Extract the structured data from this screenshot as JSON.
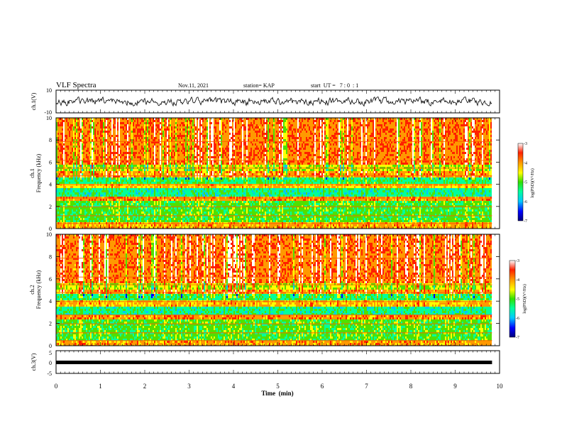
{
  "header": {
    "title": "VLF Spectra",
    "date": "Nov.11, 2021",
    "station": "station= KAP",
    "start_ut": "start  UT =   7 : 0  : 1"
  },
  "chart_data": [
    {
      "type": "line",
      "panel": "ch1-waveform",
      "ylabel": "ch.1(V)",
      "xlim": [
        0,
        10
      ],
      "ylim": [
        -10,
        10
      ],
      "yticks": [
        "10",
        "-10"
      ],
      "data_extent_min": [
        0,
        9.83
      ],
      "approx_range": [
        -4,
        4
      ]
    },
    {
      "type": "heatmap",
      "panel": "ch1-spectrogram",
      "ylabel": "ch.1\nFrequency  (kHz)",
      "xlim": [
        0,
        10
      ],
      "ylim": [
        0,
        10
      ],
      "yticks": [
        "0",
        "2",
        "4",
        "6",
        "8",
        "10"
      ],
      "colorbar": {
        "label": "log(PSD)(V²/Hz)",
        "range": [
          -7,
          -3
        ],
        "ticks": [
          "-3",
          "-4",
          "-5",
          "-6",
          "-7"
        ]
      }
    },
    {
      "type": "heatmap",
      "panel": "ch2-spectrogram",
      "ylabel": "ch.2\nFrequency  (kHz)",
      "xlim": [
        0,
        10
      ],
      "ylim": [
        0,
        10
      ],
      "yticks": [
        "0",
        "2",
        "4",
        "6",
        "8",
        "10"
      ],
      "colorbar": {
        "label": "log(PSD)(V²/Hz)",
        "range": [
          -7,
          -3
        ],
        "ticks": [
          "-3",
          "-4",
          "-5",
          "-6",
          "-7"
        ]
      }
    },
    {
      "type": "line",
      "panel": "ch3-waveform",
      "ylabel": "ch.3(V)",
      "xlim": [
        0,
        10
      ],
      "ylim": [
        -5,
        5
      ],
      "yticks": [
        "5",
        "0",
        "-5"
      ],
      "approx_level": -1
    }
  ],
  "xaxis": {
    "label": "Time  (min)",
    "ticks": [
      "0",
      "1",
      "2",
      "3",
      "4",
      "5",
      "6",
      "7",
      "8",
      "9",
      "10"
    ]
  },
  "colors": {
    "spectrum_scale": [
      "#00007a",
      "#0000ff",
      "#00c8ff",
      "#00ff9a",
      "#50e000",
      "#ffff00",
      "#ff9900",
      "#ff2000",
      "#ffffff"
    ]
  }
}
